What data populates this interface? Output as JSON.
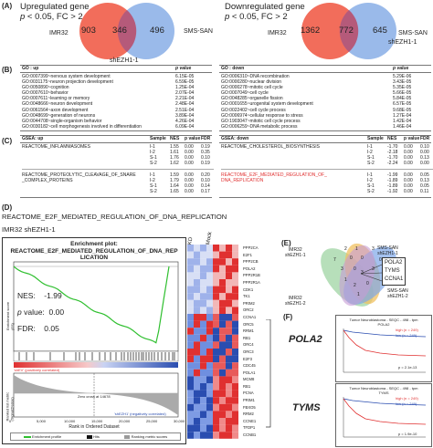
{
  "panel_a": {
    "letter": "(A)",
    "up": {
      "title_line1": "Upregulated gene",
      "title_line2_prefix": "p",
      "title_line2": " < 0.05, FC > 2",
      "left_only": "903",
      "overlap": "346",
      "right_only": "496",
      "left_label": "IMR32",
      "right_label": "SMS-SAN",
      "bottom_label": "shEZH1-1"
    },
    "down": {
      "title_line1": "Downregulated gene",
      "title_line2_prefix": "p",
      "title_line2": " < 0.05, FC > 2",
      "left_only": "1362",
      "overlap": "772",
      "right_only": "645",
      "left_label": "IMR32",
      "right_label": "SMS-SAN",
      "bottom_label": "shEZH1-1"
    },
    "colors": {
      "left": "#f26d5b",
      "right": "#8fb3e8",
      "overlap": "#b55a7a"
    }
  },
  "panel_b": {
    "letter": "(B)",
    "up": {
      "header": "GO : up",
      "pheader": "p value",
      "rows": [
        [
          "GO:0007399~nervous system development",
          "6.15E-05"
        ],
        [
          "GO:0031175~neuron projection development",
          "6.59E-05"
        ],
        [
          "GO:0050890~cognition",
          "1.25E-04"
        ],
        [
          "GO:0007610~behavior",
          "2.07E-04"
        ],
        [
          "GO:0007611~learning or memory",
          "2.21E-04"
        ],
        [
          "GO:0048666~neuron development",
          "2.48E-04"
        ],
        [
          "GO:0061564~axon development",
          "2.51E-04"
        ],
        [
          "GO:0048699~generation of neurons",
          "3.89E-04"
        ],
        [
          "GO:0044708~single-organism behavior",
          "4.26E-04"
        ],
        [
          "GO:0030182~cell morphogenesis involved in differentiation",
          "6.09E-04"
        ]
      ]
    },
    "down": {
      "header": "GO : down",
      "pheader": "p value",
      "rows": [
        [
          "GO:0006310~DNA recombination",
          "5.29E-06"
        ],
        [
          "GO:0000280~nuclear division",
          "3.43E-05"
        ],
        [
          "GO:0000278~mitotic cell cycle",
          "5.35E-05"
        ],
        [
          "GO:0007049~cell cycle",
          "5.66E-05"
        ],
        [
          "GO:0048285~organelle fission",
          "5.84E-05"
        ],
        [
          "GO:0001655~urogenital system development",
          "6.57E-05"
        ],
        [
          "GO:0022402~cell cycle process",
          "9.68E-05"
        ],
        [
          "GO:0006974~cellular response to stress",
          "1.27E-04"
        ],
        [
          "GO:1903047~mitotic cell cycle process",
          "1.42E-04"
        ],
        [
          "GO:0006259~DNA metabolic process",
          "1.46E-04"
        ]
      ]
    }
  },
  "panel_c": {
    "letter": "(C)",
    "up": {
      "header": "GSEA: up",
      "cols": [
        "Sample",
        "NES",
        "p value",
        "FDR"
      ],
      "sets": [
        {
          "name_line1": "REACTOME_INFLAMMASOMES",
          "name_line2": "",
          "rows": [
            [
              "I-1",
              "1.55",
              "0.00",
              "0.19"
            ],
            [
              "I-2",
              "1.61",
              "0.00",
              "0.35"
            ],
            [
              "S-1",
              "1.76",
              "0.00",
              "0.10"
            ],
            [
              "S-2",
              "1.62",
              "0.00",
              "0.19"
            ]
          ]
        },
        {
          "name_line1": "REACTOME_PROTEOLYTIC_CLEAVAGE_OF_SNARE",
          "name_line2": "_COMPLEX_PROTEINS",
          "rows": [
            [
              "I-1",
              "1.59",
              "0.00",
              "0.20"
            ],
            [
              "I-2",
              "1.79",
              "0.00",
              "0.10"
            ],
            [
              "S-1",
              "1.64",
              "0.00",
              "0.14"
            ],
            [
              "S-2",
              "1.65",
              "0.00",
              "0.17"
            ]
          ]
        }
      ]
    },
    "down": {
      "header": "GSEA: down",
      "cols": [
        "Sample",
        "NES",
        "p value",
        "FDR"
      ],
      "sets": [
        {
          "name_line1": "REACTOME_CHOLESTEROL_BIOSYNTHESIS",
          "name_line2": "",
          "rows": [
            [
              "I-1",
              "-1.70",
              "0.00",
              "0.10"
            ],
            [
              "I-2",
              "-2.18",
              "0.00",
              "0.00"
            ],
            [
              "S-1",
              "-1.70",
              "0.00",
              "0.13"
            ],
            [
              "S-2",
              "-2.24",
              "0.00",
              "0.00"
            ]
          ]
        },
        {
          "name_line1": "REACTOME_E2F_MEDIATED_REGULATION_OF_",
          "name_line2": "DNA_REPLICATION",
          "rows": [
            [
              "I-1",
              "-1.99",
              "0.00",
              "0.05"
            ],
            [
              "I-2",
              "-1.89",
              "0.00",
              "0.13"
            ],
            [
              "S-1",
              "-1.89",
              "0.00",
              "0.05"
            ],
            [
              "S-2",
              "-1.92",
              "0.00",
              "0.11"
            ]
          ]
        }
      ]
    }
  },
  "panel_d": {
    "letter": "(D)",
    "title": "REACTOME_E2F_MEDIATED_REGULATION_OF_DNA_REPLICATION",
    "subtitle": "IMR32 shEZH1-1",
    "plot_title": "Enrichment plot:",
    "plot_title2": "REACTOME_E2F_MEDIATED_REGULATION_OF_DNA_REP",
    "plot_title3": "LICATION",
    "nes_label": "NES:",
    "nes": "-1.99",
    "p_label_italic": "p",
    "p_label": " value:",
    "p": "0.00",
    "fdr_label": "FDR:",
    "fdr": "0.05",
    "es_axis": "Enrichment score (ES)",
    "rank_axis": "Ranked list metric (Signal2Noise)",
    "x_axis": "Rank in Ordered Dataset",
    "pos_label": "'shEV' (positively correlated)",
    "neg_label": "'shEZH1' (negatively correlated)",
    "zero_label": "Zero cross at 14678",
    "x_ticks": [
      "0",
      "5,000",
      "10,000",
      "15,000",
      "20,000",
      "25,000",
      "30,000"
    ],
    "legend": [
      "Enrichment profile",
      "Hits",
      "Ranking metric scores"
    ],
    "heatmap": {
      "col_labels": [
        "KD",
        "Mock"
      ],
      "genes": [
        "PPP2CA",
        "E2F1",
        "PPP2CB",
        "POLA2",
        "PPP2R1B",
        "PPP2R1A",
        "CDK1",
        "TK1",
        "PRIM2",
        "ORC2",
        "CCNA1",
        "ORC5",
        "RRM1",
        "RB1",
        "ORC4",
        "ORC3",
        "E2F3",
        "CDC45",
        "POLA1",
        "MCM8",
        "RB1",
        "PCNA",
        "PRIM1",
        "FBXO5",
        "RRM2",
        "CCNE1",
        "TFDP1",
        "CCNB1"
      ],
      "bracket_label": ""
    }
  },
  "panel_e": {
    "letter": "(E)",
    "labels": {
      "imr32_1": "IMR32\nshEZH1-1",
      "sms_1": "SMS-SAN\nshEZH1-1",
      "imr32_2": "IMR32\nshEZH1-2",
      "sms_2": "SMS-SAN\nshEZH1-2"
    },
    "genes": [
      "POLA2",
      "TYMS",
      "CCNA1"
    ],
    "colors": {
      "c1": "#9fd4a3",
      "c2": "#f0c060",
      "c3": "#7ea7e8",
      "c4": "#c69bd6"
    }
  },
  "panel_f": {
    "letter": "(F)",
    "genes": [
      "POLA2",
      "TYMS"
    ],
    "km1": {
      "title": "Tumor Neuroblastoma - SEQC - 498 - tpm",
      "sub": "POLA2",
      "high": "high (n = 249)",
      "low": "low (n = 249)",
      "pval": "p = 2.1e-13"
    },
    "km2": {
      "title": "Tumor Neuroblastoma - SEQC - 498 - tpm",
      "sub": "TYMS",
      "high": "high (n = 249)",
      "low": "low (n = 249)",
      "pval": "p = 1.9e-10"
    }
  }
}
